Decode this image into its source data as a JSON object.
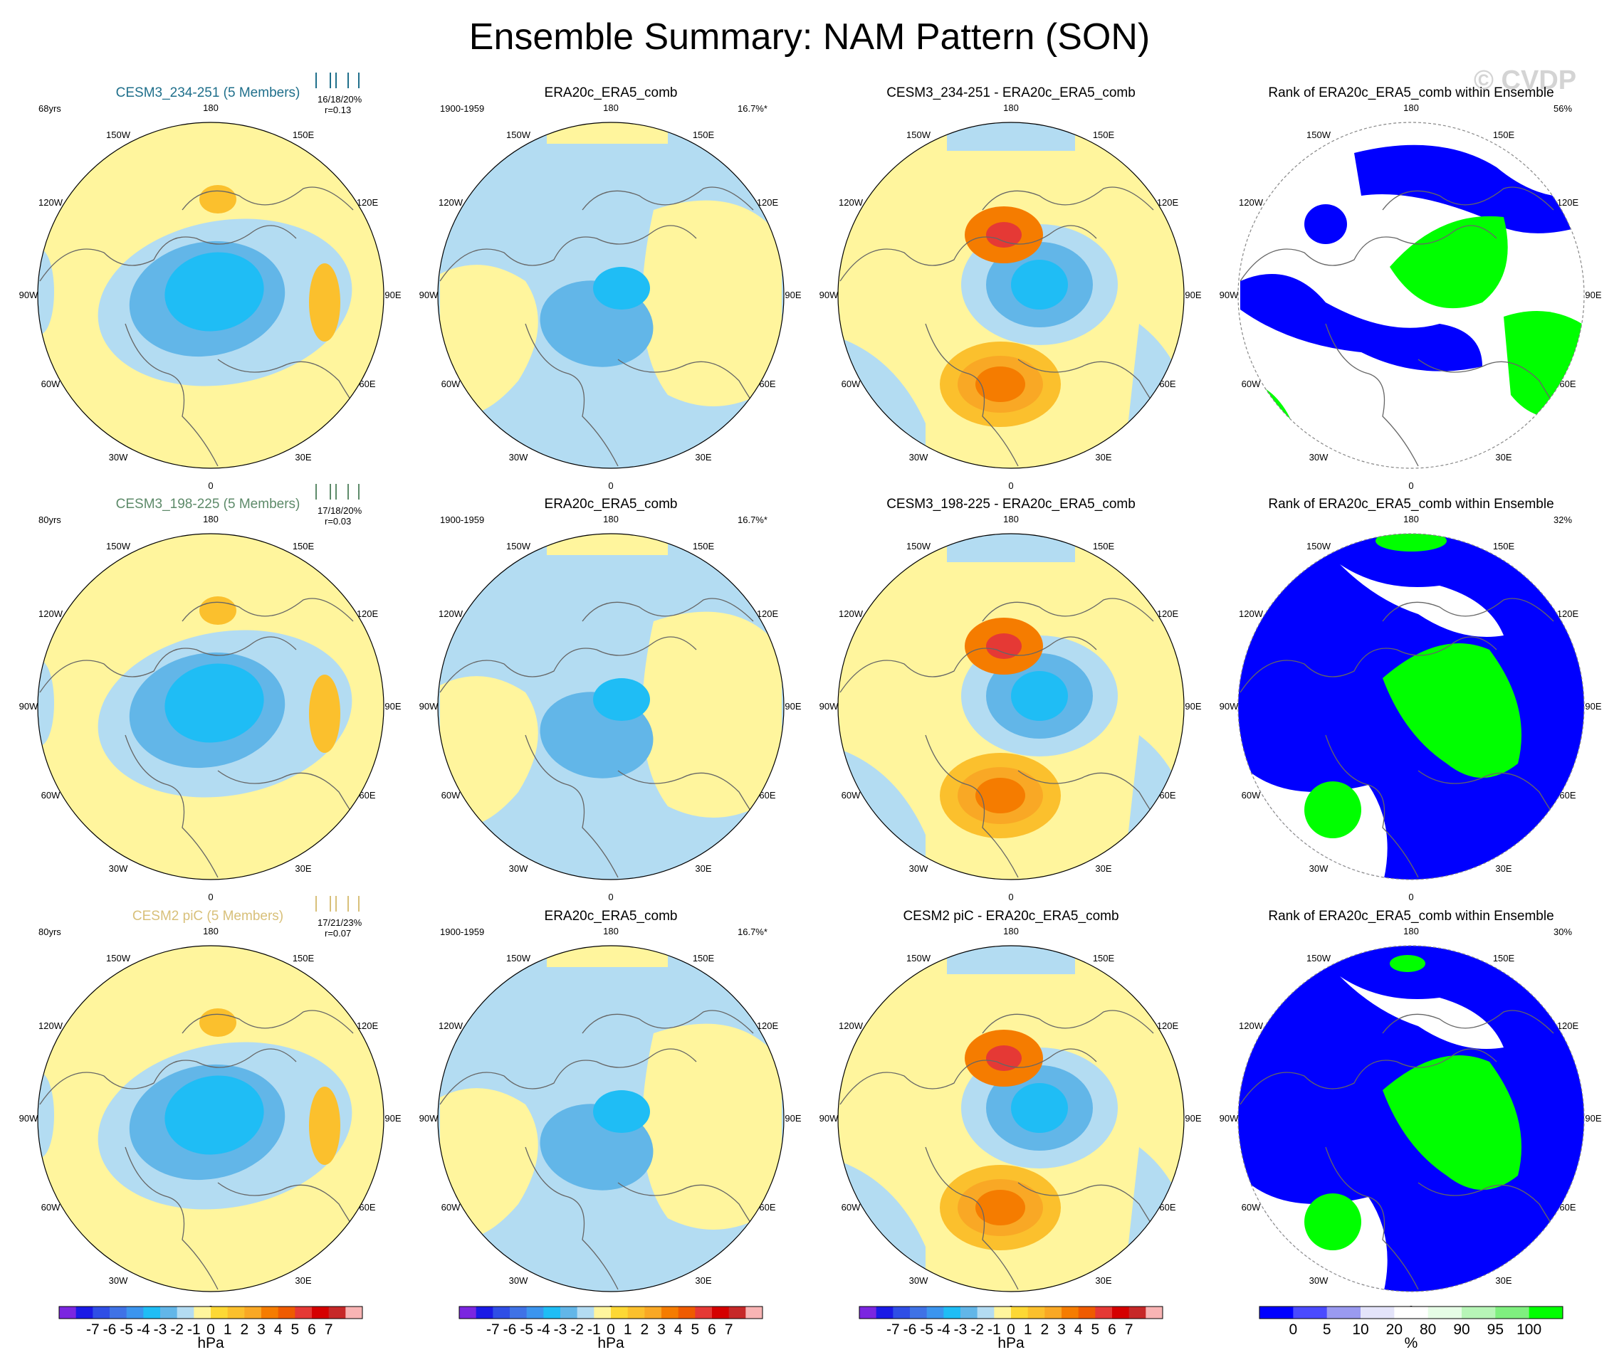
{
  "title": "Ensemble Summary: NAM Pattern (SON)",
  "watermark": "© CVDP",
  "colors": {
    "fill_neutral_pos": "#fff59d",
    "fill_neutral_neg": "#b3dcf2",
    "land": "#777777",
    "rank_low": "#0000ff",
    "rank_high": "#00ff00"
  },
  "rows": [
    {
      "model_title": "CESM3_234-251 (5 Members)",
      "model_title_color": "#1f6f8b",
      "years": "68yrs",
      "stats": "16/18/20%",
      "r": "r=0.13",
      "obs_title": "ERA20c_ERA5_comb",
      "obs_period": "1900-1959",
      "obs_pct": "16.7%*",
      "diff_title": "CESM3_234-251 - ERA20c_ERA5_comb",
      "rank_title": "Rank of ERA20c_ERA5_comb within Ensemble",
      "rank_pct": "56%"
    },
    {
      "model_title": "CESM3_198-225 (5 Members)",
      "model_title_color": "#5d8a69",
      "years": "80yrs",
      "stats": "17/18/20%",
      "r": "r=0.03",
      "obs_title": "ERA20c_ERA5_comb",
      "obs_period": "1900-1959",
      "obs_pct": "16.7%*",
      "diff_title": "CESM3_198-225 - ERA20c_ERA5_comb",
      "rank_title": "Rank of ERA20c_ERA5_comb within Ensemble",
      "rank_pct": "32%"
    },
    {
      "model_title": "CESM2 piC (5 Members)",
      "model_title_color": "#d8c07a",
      "years": "80yrs",
      "stats": "17/21/23%",
      "r": "r=0.07",
      "obs_title": "ERA20c_ERA5_comb",
      "obs_period": "1900-1959",
      "obs_pct": "16.7%*",
      "diff_title": "CESM2 piC - ERA20c_ERA5_comb",
      "rank_title": "Rank of ERA20c_ERA5_comb within Ensemble",
      "rank_pct": "30%"
    }
  ],
  "lon_labels": [
    "180",
    "150E",
    "120E",
    "90E",
    "60E",
    "30E",
    "0",
    "30W",
    "60W",
    "90W",
    "120W",
    "150W"
  ],
  "chart_data": {
    "type": "heatmap",
    "projection": "polar stereographic (Northern Hemisphere)",
    "hpa_colorbar": {
      "unit": "hPa",
      "tick_labels": [
        "-7",
        "-6",
        "-5",
        "-4",
        "-3",
        "-2",
        "-1",
        "0",
        "1",
        "2",
        "3",
        "4",
        "5",
        "6",
        "7"
      ],
      "colors": [
        "#7b26e0",
        "#1a1ae6",
        "#2f4ee6",
        "#3f72e6",
        "#3c95ee",
        "#1fbdf5",
        "#62b6e8",
        "#b3dcf2",
        "#fff59d",
        "#fdd835",
        "#fbc02d",
        "#f9a825",
        "#f57c00",
        "#ef5b00",
        "#e53935",
        "#d50000",
        "#c62828",
        "#f8b4b4"
      ]
    },
    "rank_colorbar": {
      "unit": "%",
      "tick_labels": [
        "0",
        "5",
        "10",
        "20",
        "80",
        "90",
        "95",
        "100"
      ],
      "colors": [
        "#0000ff",
        "#4a4aff",
        "#9a9af0",
        "#e4e4fa",
        "#ffffff",
        "#e6fde6",
        "#b7f5b7",
        "#7fef7f",
        "#00ff00"
      ]
    }
  }
}
